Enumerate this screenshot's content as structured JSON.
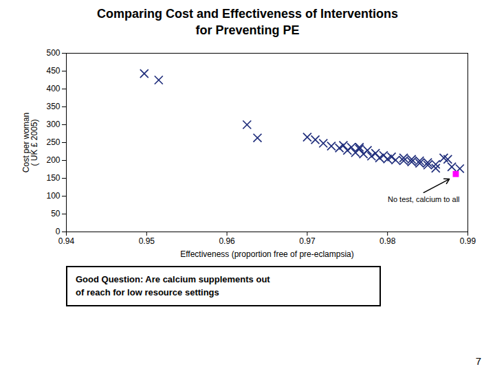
{
  "chart_data": {
    "type": "scatter",
    "title": "Comparing Cost and Effectiveness of Interventions\nfor Preventing PE",
    "xlabel": "Effectiveness (proportion free of pre-eclampsia)",
    "ylabel": "Cost per woman\n( UK £ 2005)",
    "xlim": [
      0.94,
      0.99
    ],
    "ylim": [
      0,
      500
    ],
    "xticks": [
      0.94,
      0.95,
      0.96,
      0.97,
      0.98,
      0.99
    ],
    "yticks": [
      0,
      50,
      100,
      150,
      200,
      250,
      300,
      350,
      400,
      450,
      500
    ],
    "grid": false,
    "series": [
      {
        "color": "#1F2D7B",
        "marker": "x",
        "x": [
          0.9497,
          0.9515,
          0.9625,
          0.9638,
          0.97,
          0.971,
          0.972,
          0.973,
          0.974,
          0.975,
          0.976,
          0.977,
          0.978,
          0.979,
          0.98,
          0.981,
          0.982,
          0.983,
          0.9765,
          0.9775,
          0.9785,
          0.9795,
          0.9805,
          0.982,
          0.983,
          0.984,
          0.985,
          0.986,
          0.984,
          0.985,
          0.986,
          0.987,
          0.9875,
          0.988,
          0.989,
          0.9745,
          0.9755,
          0.9765
        ],
        "values": [
          443,
          425,
          300,
          263,
          265,
          258,
          248,
          240,
          235,
          228,
          222,
          218,
          212,
          207,
          204,
          201,
          199,
          196,
          237,
          228,
          220,
          214,
          210,
          207,
          203,
          199,
          194,
          189,
          192,
          187,
          178,
          207,
          203,
          182,
          177,
          242,
          237,
          232
        ]
      },
      {
        "color": "#FF00FF",
        "marker": "square",
        "x": [
          0.9885
        ],
        "values": [
          162
        ]
      }
    ],
    "annotations": [
      {
        "text": "No test, calcium to all",
        "xy": [
          0.9877,
          148
        ],
        "xytext": [
          0.9845,
          110
        ]
      },
      {
        "text": "Good Question: Are calcium supplements out\nof reach for low resource settings"
      },
      {
        "text": "7"
      }
    ]
  }
}
